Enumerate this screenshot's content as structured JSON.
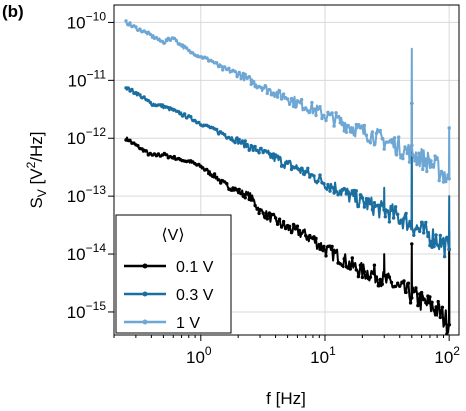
{
  "chart_data": {
    "type": "line",
    "panel_label": "(b)",
    "xlabel": "f [Hz]",
    "ylabel_main": "S",
    "ylabel_sub": "V",
    "ylabel_unit_pre": " [V",
    "ylabel_unit_sup": "2",
    "ylabel_unit_post": "/Hz]",
    "xscale": "log",
    "yscale": "log",
    "xlim": [
      0.2,
      120
    ],
    "ylim": [
      4e-16,
      2e-10
    ],
    "grid": true,
    "x_ticks": [
      {
        "value": 1,
        "base": "10",
        "exp": "0"
      },
      {
        "value": 10,
        "base": "10",
        "exp": "1"
      },
      {
        "value": 100,
        "base": "10",
        "exp": "2"
      }
    ],
    "y_ticks": [
      {
        "value": 1e-15,
        "base": "10",
        "exp": "−15"
      },
      {
        "value": 1e-14,
        "base": "10",
        "exp": "−14"
      },
      {
        "value": 1e-13,
        "base": "10",
        "exp": "−13"
      },
      {
        "value": 1e-12,
        "base": "10",
        "exp": "−12"
      },
      {
        "value": 1e-11,
        "base": "10",
        "exp": "−11"
      },
      {
        "value": 1e-10,
        "base": "10",
        "exp": "−10"
      }
    ],
    "legend": {
      "title": "⟨V⟩",
      "placement": "lower-left"
    },
    "series": [
      {
        "name": "0.1 V",
        "color": "#000000",
        "x": [
          0.25,
          0.3,
          0.4,
          0.5,
          0.6,
          0.7,
          0.8,
          1.0,
          1.2,
          1.5,
          2.0,
          2.5,
          3.0,
          4.0,
          5.0,
          6.0,
          8.0,
          10,
          13,
          16,
          20,
          25,
          30,
          35,
          40,
          45,
          50,
          55,
          60,
          70,
          80,
          90,
          100
        ],
        "y": [
          1e-12,
          7.5e-13,
          5e-13,
          5.2e-13,
          4.6e-13,
          4.2e-13,
          4e-13,
          3.2e-13,
          2.5e-13,
          1.7e-13,
          1.2e-13,
          1e-13,
          5.5e-14,
          3.8e-14,
          2.8e-14,
          2.5e-14,
          1.8e-14,
          1.2e-14,
          9e-15,
          6.5e-15,
          5e-15,
          4.5e-15,
          3.5e-15,
          3e-15,
          2.5e-15,
          2.2e-15,
          2e-15,
          1.7e-15,
          1.5e-15,
          1.3e-15,
          1.1e-15,
          8e-16,
          6e-16
        ]
      },
      {
        "name": "0.3 V",
        "color": "#1a6ea0",
        "x": [
          0.25,
          0.3,
          0.4,
          0.5,
          0.6,
          0.7,
          0.8,
          1.0,
          1.2,
          1.5,
          2.0,
          2.5,
          3.0,
          4.0,
          5.0,
          6.0,
          8.0,
          10,
          13,
          16,
          20,
          25,
          30,
          35,
          40,
          45,
          50,
          55,
          60,
          70,
          80,
          90,
          100
        ],
        "y": [
          7.5e-12,
          6e-12,
          4e-12,
          3.5e-12,
          3e-12,
          2.6e-12,
          2.3e-12,
          1.8e-12,
          1.5e-12,
          1.2e-12,
          9e-13,
          7e-13,
          6e-13,
          4.5e-13,
          3.5e-13,
          3e-13,
          2.2e-13,
          1.7e-13,
          1.3e-13,
          1e-13,
          8e-14,
          6.5e-14,
          5.5e-14,
          5e-14,
          4.2e-14,
          3.8e-14,
          3.2e-14,
          2.8e-14,
          2.5e-14,
          2.1e-14,
          1.8e-14,
          1.5e-14,
          1.2e-14
        ]
      },
      {
        "name": "1 V",
        "color": "#6ea6d4",
        "x": [
          0.25,
          0.3,
          0.4,
          0.5,
          0.6,
          0.7,
          0.8,
          1.0,
          1.2,
          1.5,
          2.0,
          2.5,
          3.0,
          4.0,
          5.0,
          6.0,
          8.0,
          10,
          13,
          16,
          20,
          25,
          30,
          35,
          40,
          45,
          50,
          55,
          60,
          70,
          80,
          90,
          100
        ],
        "y": [
          1e-10,
          8e-11,
          6e-11,
          4.5e-11,
          5.5e-11,
          4e-11,
          3.2e-11,
          2.6e-11,
          2.2e-11,
          1.6e-11,
          1.3e-11,
          1e-11,
          8e-12,
          6e-12,
          5e-12,
          4e-12,
          3.2e-12,
          2.5e-12,
          2e-12,
          1.6e-12,
          1.3e-12,
          1.1e-12,
          9e-13,
          8e-13,
          7e-13,
          6e-13,
          5.5e-13,
          5e-13,
          4.5e-13,
          3.8e-13,
          3e-13,
          2.5e-13,
          2e-13
        ]
      }
    ],
    "spikes": [
      {
        "series": 2,
        "x": 50,
        "y": 3.5e-11
      },
      {
        "series": 2,
        "x": 100,
        "y": 1.5e-12
      },
      {
        "series": 1,
        "x": 50,
        "y": 4e-12
      },
      {
        "series": 1,
        "x": 30,
        "y": 1.4e-13
      },
      {
        "series": 1,
        "x": 100,
        "y": 1e-13
      },
      {
        "series": 0,
        "x": 50,
        "y": 1.5e-14
      },
      {
        "series": 0,
        "x": 30,
        "y": 1e-14
      },
      {
        "series": 0,
        "x": 100,
        "y": 2.5e-14
      }
    ]
  }
}
